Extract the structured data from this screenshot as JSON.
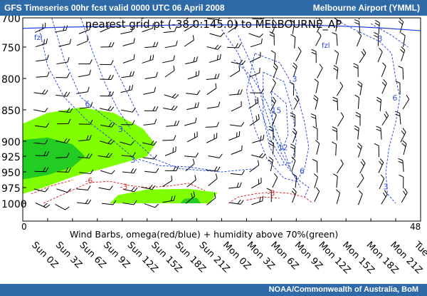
{
  "header": {
    "title": "GFS Timeseries 00hr fcst valid 0000 UTC  06 April 2008",
    "station": "Melbourne Airport (YMML)"
  },
  "footer": {
    "credit": "NOAA/Commonwealth of  Australia, BoM"
  },
  "chart_data": {
    "type": "time-height cross section",
    "title": "nearest grid pt (-38.0:145.0) to MELBOURNE_AP",
    "caption": "Wind Barbs, omega(red/blue) + humidity above 70%(green)",
    "y_axis": {
      "reversed": true,
      "ylim": [
        1000,
        700
      ],
      "tick_labels": [
        "700",
        "750",
        "800",
        "850",
        "900",
        "925",
        "950",
        "975",
        "1000"
      ]
    },
    "x_axis": {
      "xlim": [
        0,
        48
      ],
      "end_labels": [
        "0",
        "48"
      ],
      "time_labels": [
        "Sun 0Z",
        "Sun 3Z",
        "Sun 6Z",
        "Sun 9Z",
        "Sun 12Z",
        "Sun 15Z",
        "Sun 18Z",
        "Sun 21Z",
        "Mon 0Z",
        "Mon 3Z",
        "Mon 6Z",
        "Mon 9Z",
        "Mon 12Z",
        "Mon 15Z",
        "Mon 18Z",
        "Mon 21Z",
        "Tue 0Z"
      ]
    },
    "freezing_level_label": "fzl",
    "contour_labels": [
      {
        "text": "6",
        "h": 7.5,
        "p": 845,
        "color": "#3050e0"
      },
      {
        "text": "3",
        "h": 11.5,
        "p": 885,
        "color": "#3050e0"
      },
      {
        "text": "3",
        "h": 13,
        "p": 935,
        "color": "#3050e0"
      },
      {
        "text": "3",
        "h": 32.5,
        "p": 805,
        "color": "#3050e0"
      },
      {
        "text": "15",
        "h": 30,
        "p": 855,
        "color": "#3050e0"
      },
      {
        "text": "12",
        "h": 30.8,
        "p": 915,
        "color": "#3050e0"
      },
      {
        "text": "6",
        "h": 33.4,
        "p": 953,
        "color": "#3050e0"
      },
      {
        "text": "3",
        "h": 42.8,
        "p": 740,
        "color": "#3050e0"
      },
      {
        "text": "6",
        "h": 44.6,
        "p": 835,
        "color": "#3050e0"
      },
      {
        "text": "3",
        "h": 43.5,
        "p": 978,
        "color": "#3050e0"
      },
      {
        "text": "-6",
        "h": 7.5,
        "p": 968,
        "color": "#e03030"
      },
      {
        "text": "-3",
        "h": 11.7,
        "p": 978,
        "color": "#e03030"
      },
      {
        "text": "-3",
        "h": 29.5,
        "p": 988,
        "color": "#e03030"
      }
    ],
    "colors": {
      "humidity_70": "#80ff00",
      "humidity_90": "#22cc22",
      "omega_positive": "#3050e0",
      "omega_negative": "#e03030",
      "freezing_level": "#2040e0",
      "header": "#2f6aa8"
    },
    "grid": false
  }
}
